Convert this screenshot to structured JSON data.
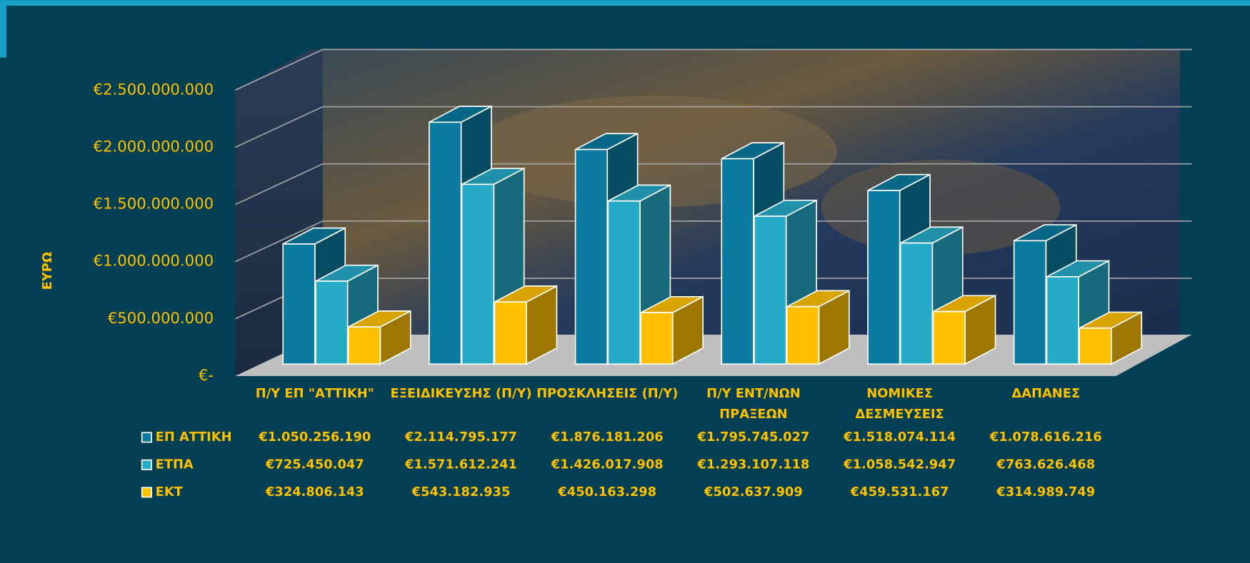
{
  "chart_data": {
    "type": "bar3d",
    "y_label": "ΕΥΡΩ",
    "categories": [
      "Π/Υ ΕΠ \"ΑΤΤΙΚΗ\"",
      "ΕΞΕΙΔΙΚΕΥΣΗΣ (Π/Υ)",
      "ΠΡΟΣΚΛΗΣΕΙΣ (Π/Υ)",
      "Π/Υ ΕΝΤ/ΝΩΝ ΠΡΑΞΕΩΝ",
      "ΝΟΜΙΚΕΣ ΔΕΣΜΕΥΣΕΙΣ",
      "ΔΑΠΑΝΕΣ"
    ],
    "series": [
      {
        "name": "ΕΠ ΑΤΤΙΚΗ",
        "color": "#0a7aa0",
        "values": [
          1050256190,
          2114795177,
          1876181206,
          1795745027,
          1518074114,
          1078616216
        ],
        "value_labels": [
          "€1.050.256.190",
          "€2.114.795.177",
          "€1.876.181.206",
          "€1.795.745.027",
          "€1.518.074.114",
          "€1.078.616.216"
        ]
      },
      {
        "name": "ΕΤΠΑ",
        "color": "#25abc7",
        "values": [
          725450047,
          1571612241,
          1426017908,
          1293107118,
          1058542947,
          763626468
        ],
        "value_labels": [
          "€725.450.047",
          "€1.571.612.241",
          "€1.426.017.908",
          "€1.293.107.118",
          "€1.058.542.947",
          "€763.626.468"
        ]
      },
      {
        "name": "ΕΚΤ",
        "color": "#ffc000",
        "values": [
          324806143,
          543182935,
          450163298,
          502637909,
          459531167,
          314989749
        ],
        "value_labels": [
          "€324.806.143",
          "€543.182.935",
          "€450.163.298",
          "€502.637.909",
          "€459.531.167",
          "€314.989.749"
        ]
      }
    ],
    "ylim": [
      0,
      2500000000
    ],
    "yticks": [
      {
        "value": 0,
        "label": "€-"
      },
      {
        "value": 500000000,
        "label": "€500.000.000"
      },
      {
        "value": 1000000000,
        "label": "€1.000.000.000"
      },
      {
        "value": 1500000000,
        "label": "€1.500.000.000"
      },
      {
        "value": 2000000000,
        "label": "€2.000.000.000"
      },
      {
        "value": 2500000000,
        "label": "€2.500.000.000"
      }
    ],
    "grid": true,
    "label_color": "#ffc000"
  }
}
